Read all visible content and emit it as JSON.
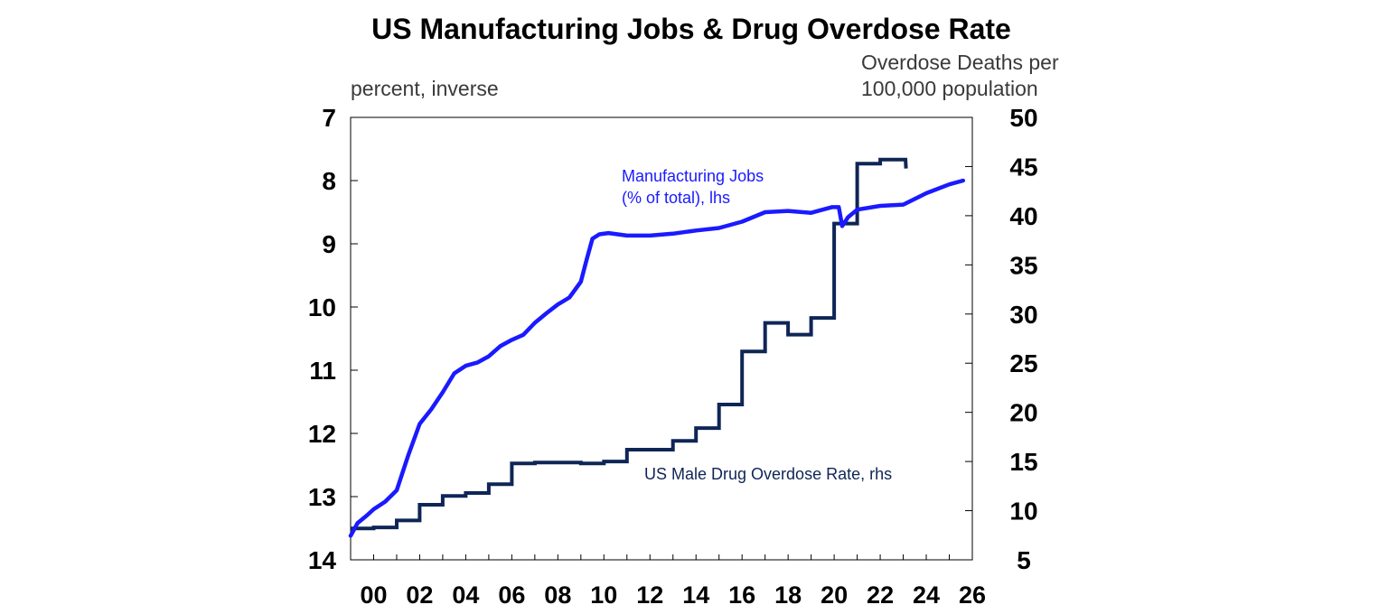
{
  "chart_data": {
    "type": "line",
    "title": "US Manufacturing Jobs & Drug Overdose Rate",
    "left_axis": {
      "label": "percent, inverse",
      "inverted": true,
      "range": [
        7,
        14
      ],
      "ticks": [
        "7",
        "8",
        "9",
        "10",
        "11",
        "12",
        "13",
        "14"
      ]
    },
    "right_axis": {
      "label_lines": [
        "Overdose Deaths per",
        "100,000 population"
      ],
      "range": [
        5,
        50
      ],
      "ticks": [
        "50",
        "45",
        "40",
        "35",
        "30",
        "25",
        "20",
        "15",
        "10",
        "5"
      ]
    },
    "x_axis": {
      "range": [
        1999,
        2026
      ],
      "ticks": [
        "00",
        "02",
        "04",
        "06",
        "08",
        "10",
        "12",
        "14",
        "16",
        "18",
        "20",
        "22",
        "24",
        "26"
      ]
    },
    "colors": {
      "manufacturing": "#1a1aff",
      "overdose": "#0f2556"
    },
    "series": [
      {
        "name": "Manufacturing Jobs (% of total), lhs",
        "label_lines": [
          "Manufacturing Jobs",
          "(% of total), lhs"
        ],
        "axis": "left",
        "points": [
          [
            1999.0,
            13.62
          ],
          [
            1999.3,
            13.42
          ],
          [
            1999.7,
            13.3
          ],
          [
            2000.0,
            13.2
          ],
          [
            2000.5,
            13.08
          ],
          [
            2001.0,
            12.9
          ],
          [
            2001.5,
            12.35
          ],
          [
            2002.0,
            11.85
          ],
          [
            2002.5,
            11.62
          ],
          [
            2003.0,
            11.35
          ],
          [
            2003.5,
            11.05
          ],
          [
            2004.0,
            10.93
          ],
          [
            2004.5,
            10.88
          ],
          [
            2005.0,
            10.78
          ],
          [
            2005.5,
            10.62
          ],
          [
            2006.0,
            10.52
          ],
          [
            2006.5,
            10.44
          ],
          [
            2007.0,
            10.25
          ],
          [
            2007.5,
            10.1
          ],
          [
            2008.0,
            9.96
          ],
          [
            2008.5,
            9.85
          ],
          [
            2009.0,
            9.6
          ],
          [
            2009.25,
            9.25
          ],
          [
            2009.5,
            8.92
          ],
          [
            2009.8,
            8.85
          ],
          [
            2010.2,
            8.83
          ],
          [
            2011.0,
            8.87
          ],
          [
            2012.0,
            8.87
          ],
          [
            2013.0,
            8.84
          ],
          [
            2014.0,
            8.79
          ],
          [
            2015.0,
            8.75
          ],
          [
            2016.0,
            8.65
          ],
          [
            2017.0,
            8.5
          ],
          [
            2018.0,
            8.48
          ],
          [
            2019.0,
            8.51
          ],
          [
            2019.5,
            8.46
          ],
          [
            2019.9,
            8.42
          ],
          [
            2020.2,
            8.42
          ],
          [
            2020.35,
            8.72
          ],
          [
            2020.6,
            8.58
          ],
          [
            2021.0,
            8.46
          ],
          [
            2022.0,
            8.4
          ],
          [
            2023.0,
            8.38
          ],
          [
            2024.0,
            8.2
          ],
          [
            2025.0,
            8.06
          ],
          [
            2025.6,
            8.0
          ]
        ]
      },
      {
        "name": "US Male Drug Overdose Rate, rhs",
        "label": "US Male Drug Overdose Rate, rhs",
        "axis": "right",
        "step_points": [
          [
            1999.0,
            8.2
          ],
          [
            2000.0,
            8.3
          ],
          [
            2001.0,
            9.0
          ],
          [
            2002.0,
            10.6
          ],
          [
            2003.0,
            11.5
          ],
          [
            2004.0,
            11.8
          ],
          [
            2005.0,
            12.7
          ],
          [
            2006.0,
            14.8
          ],
          [
            2007.0,
            14.9
          ],
          [
            2009.0,
            14.8
          ],
          [
            2010.0,
            15.0
          ],
          [
            2011.0,
            16.2
          ],
          [
            2013.0,
            17.1
          ],
          [
            2014.0,
            18.4
          ],
          [
            2015.0,
            20.8
          ],
          [
            2016.0,
            26.2
          ],
          [
            2017.0,
            29.1
          ],
          [
            2018.0,
            27.9
          ],
          [
            2019.0,
            29.6
          ],
          [
            2020.0,
            39.2
          ],
          [
            2021.0,
            45.3
          ],
          [
            2022.0,
            45.7
          ],
          [
            2023.0,
            45.7
          ]
        ],
        "end": [
          2023.0,
          44.8
        ]
      }
    ]
  }
}
